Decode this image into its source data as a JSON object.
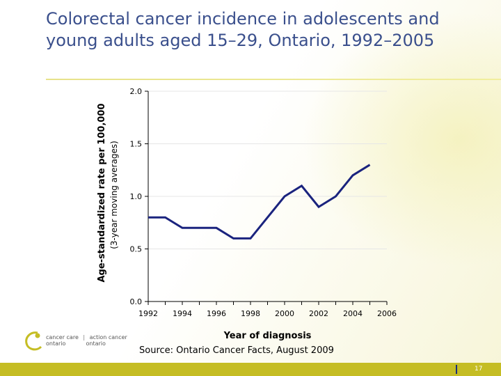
{
  "slide": {
    "title": "Colorectal cancer incidence in adolescents and young adults aged 15–29, Ontario, 1992–2005",
    "source": "Source: Ontario Cancer Facts, August 2009",
    "page_number": "17",
    "logo": {
      "left_line1": "cancer care",
      "left_line2": "ontario",
      "separator": "|",
      "right_line1": "action cancer",
      "right_line2": "ontario"
    }
  },
  "chart_data": {
    "type": "line",
    "title": "",
    "xlabel": "Year of diagnosis",
    "ylabel": "Age-standardized rate per 100,000",
    "ylabel_sub": "(3-year moving averages)",
    "xlim": [
      1992,
      2006
    ],
    "ylim": [
      0,
      2.0
    ],
    "x_ticks": [
      1992,
      1994,
      1996,
      1998,
      2000,
      2002,
      2004,
      2006
    ],
    "y_ticks": [
      0.0,
      0.5,
      1.0,
      1.5,
      2.0
    ],
    "y_tick_labels": [
      "0.0",
      "0.5",
      "1.0",
      "1.5",
      "2.0"
    ],
    "grid": true,
    "line_color": "#1a237e",
    "series": [
      {
        "name": "",
        "x": [
          1992,
          1993,
          1994,
          1995,
          1996,
          1997,
          1998,
          1999,
          2000,
          2001,
          2002,
          2003,
          2004,
          2005
        ],
        "y": [
          0.8,
          0.8,
          0.7,
          0.7,
          0.7,
          0.6,
          0.6,
          0.8,
          1.0,
          1.1,
          0.9,
          1.0,
          1.2,
          1.3
        ]
      }
    ]
  }
}
